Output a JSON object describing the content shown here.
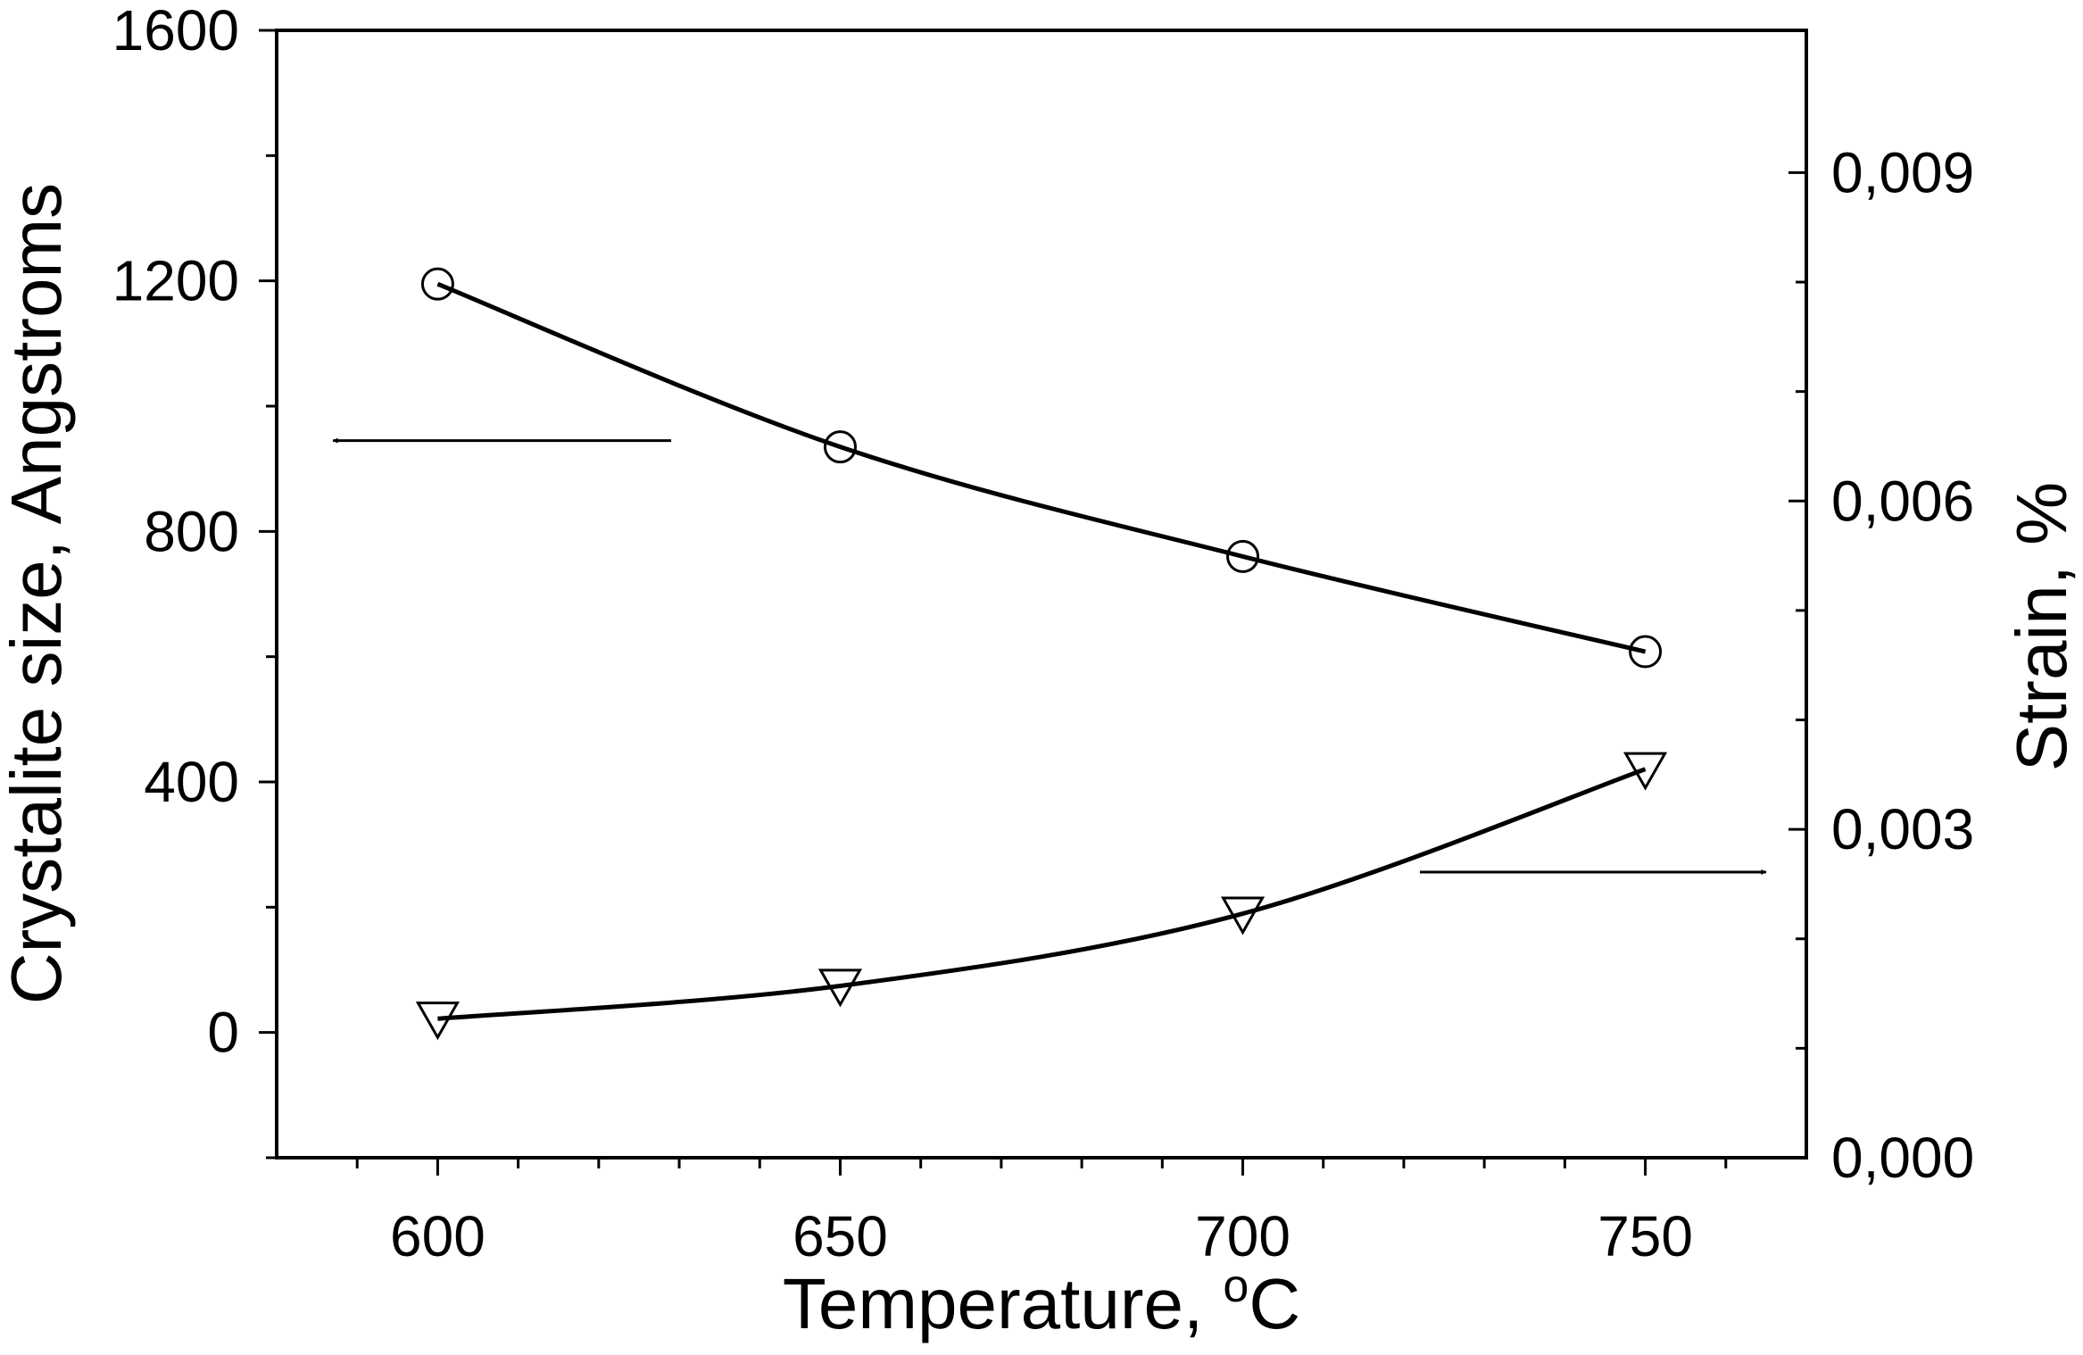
{
  "chart_data": {
    "type": "line",
    "x": [
      600,
      650,
      700,
      750
    ],
    "xlim": [
      580,
      770
    ],
    "xticks": [
      600,
      650,
      700,
      750
    ],
    "xlabel": "Temperature, ",
    "xlabel_unit": "C",
    "xlabel_superscript": "o",
    "ylabel_left": "Crystalite size, Angstroms",
    "ylabel_right": "Strain, %",
    "ylim_left": [
      -200,
      1600
    ],
    "ylim_right": [
      0,
      0.0103
    ],
    "yticks_left": [
      0,
      400,
      800,
      1200,
      1600
    ],
    "yticks_right": [
      0,
      0.003,
      0.006,
      0.009
    ],
    "yticks_right_labels": [
      "0,000",
      "0,003",
      "0,006",
      "0,009"
    ],
    "series": [
      {
        "axis": "left",
        "marker": "circle",
        "values": [
          1195,
          935,
          760,
          608
        ]
      },
      {
        "axis": "right",
        "marker": "triangle-down",
        "values": [
          0.00127,
          0.00157,
          0.00223,
          0.00355
        ]
      }
    ],
    "annotations": [
      {
        "type": "arrow",
        "direction": "left",
        "points_to": "left-axis",
        "from_x": 629,
        "to_x": 587,
        "y_left": 945
      },
      {
        "type": "arrow",
        "direction": "right",
        "points_to": "right-axis",
        "from_x": 722,
        "to_x": 765,
        "y_right": 0.00261
      }
    ],
    "grid": false,
    "legend": "none",
    "colors": {
      "line": "#000000",
      "background": "#ffffff"
    }
  }
}
